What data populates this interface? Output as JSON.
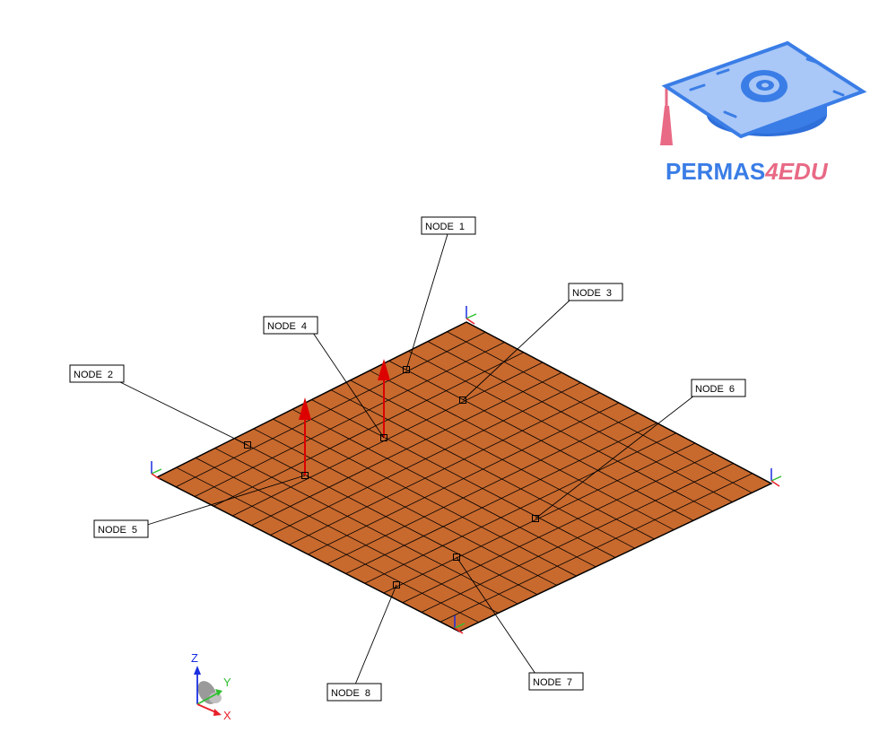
{
  "logo": {
    "text_main": "PERMAS",
    "text_accent": "4EDU",
    "color_main": "#3a7de6",
    "color_accent": "#e86a85"
  },
  "plate": {
    "fill_color": "#c8692e",
    "grid_color": "#000000",
    "divisions": 16
  },
  "nodes": [
    {
      "id": "node-1",
      "label": "NODE  1"
    },
    {
      "id": "node-2",
      "label": "NODE  2"
    },
    {
      "id": "node-3",
      "label": "NODE  3"
    },
    {
      "id": "node-4",
      "label": "NODE  4"
    },
    {
      "id": "node-5",
      "label": "NODE  5"
    },
    {
      "id": "node-6",
      "label": "NODE  6"
    },
    {
      "id": "node-7",
      "label": "NODE  7"
    },
    {
      "id": "node-8",
      "label": "NODE  8"
    }
  ],
  "force_color": "#dd0000",
  "triad": {
    "x_label": "X",
    "y_label": "Y",
    "z_label": "Z",
    "x_color": "#e8202a",
    "y_color": "#2fbf2f",
    "z_color": "#1a2ee0"
  }
}
